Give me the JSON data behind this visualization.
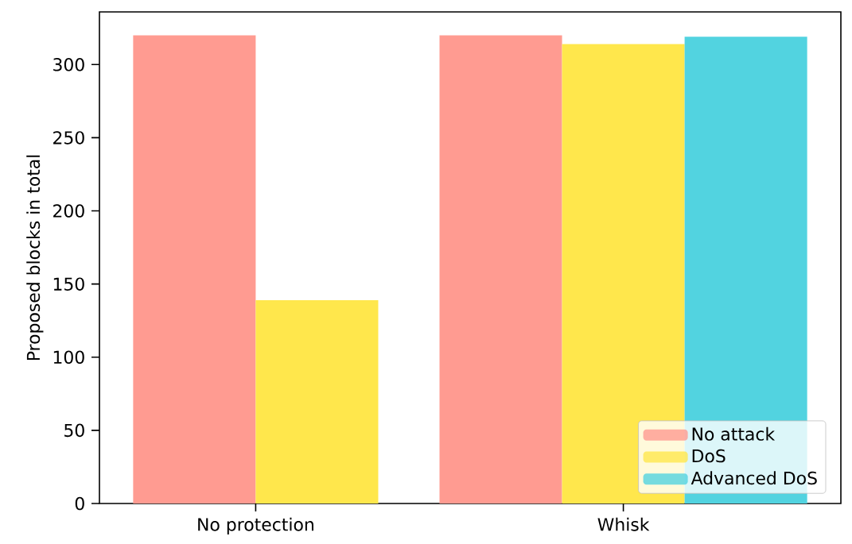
{
  "chart_data": {
    "type": "bar",
    "ylabel": "Proposed blocks in total",
    "categories": [
      "No protection",
      "Whisk"
    ],
    "series": [
      {
        "name": "No attack",
        "color": "#ff9b91",
        "values": [
          320,
          320
        ]
      },
      {
        "name": "DoS",
        "color": "#ffe74c",
        "values": [
          139,
          314
        ]
      },
      {
        "name": "Advanced DoS",
        "color": "#52d3e0",
        "values": [
          null,
          319
        ]
      }
    ],
    "ylim": [
      0,
      336
    ],
    "yticks": [
      0,
      50,
      100,
      150,
      200,
      250,
      300
    ],
    "grid": false,
    "legend": "bottom right"
  }
}
